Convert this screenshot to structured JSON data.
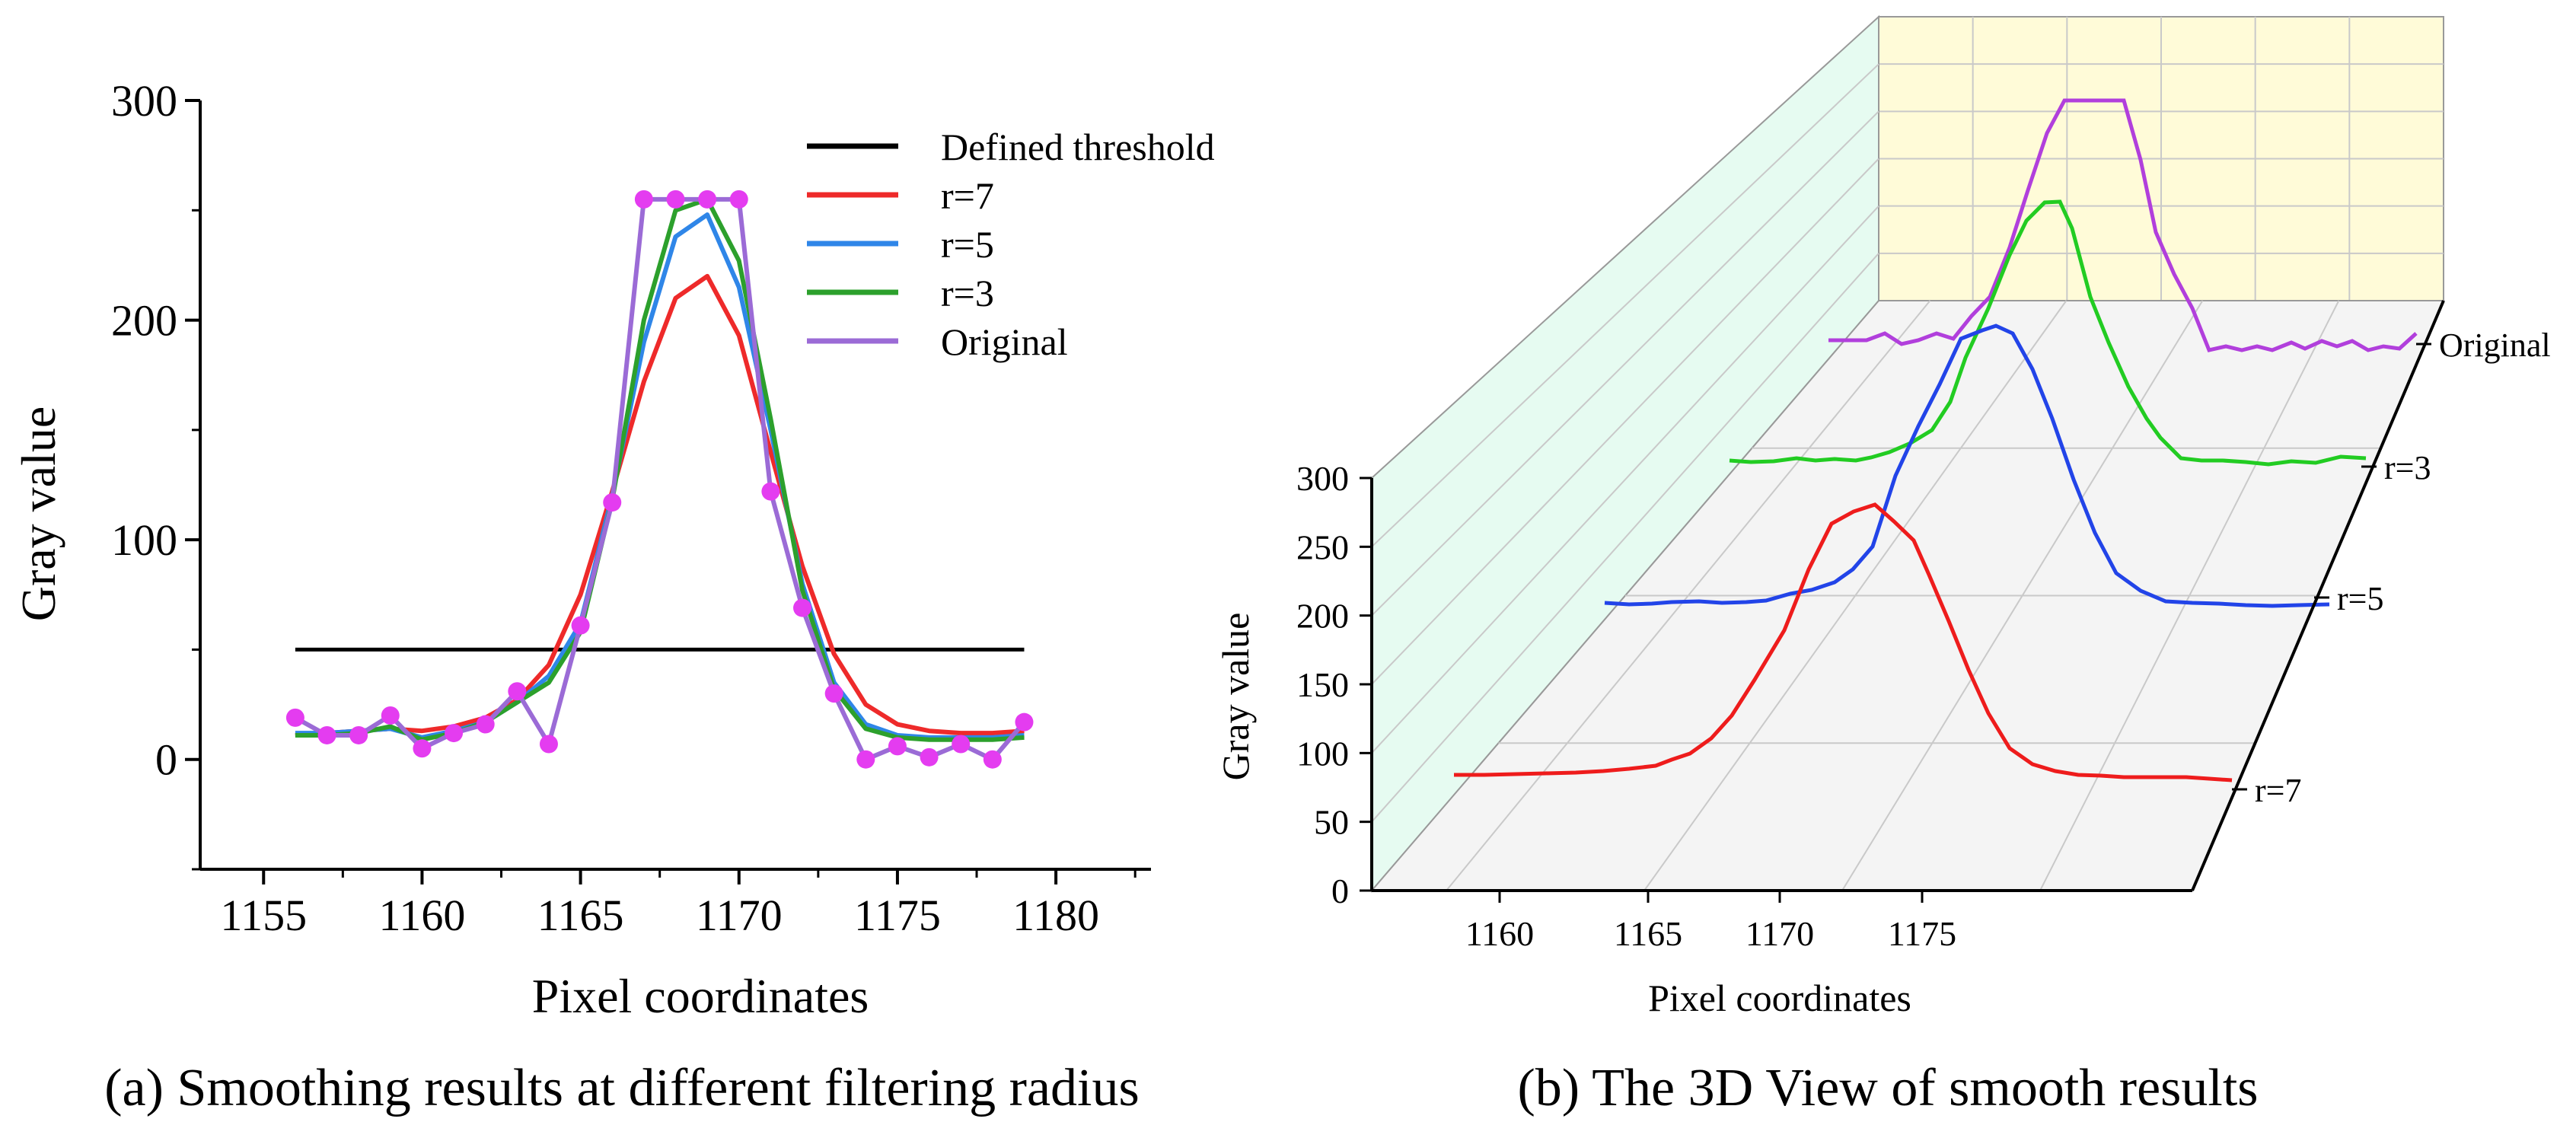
{
  "chart_data": [
    {
      "type": "line",
      "xlabel": "Pixel coordinates",
      "ylabel": "Gray value",
      "caption": "(a) Smoothing results at different filtering radius",
      "xlim": [
        1153,
        1183
      ],
      "ylim": [
        -50,
        300
      ],
      "xticks": [
        1155,
        1160,
        1165,
        1170,
        1175,
        1180
      ],
      "yticks": [
        0,
        100,
        200,
        300
      ],
      "x": [
        1156,
        1157,
        1158,
        1159,
        1160,
        1161,
        1162,
        1163,
        1164,
        1165,
        1166,
        1167,
        1168,
        1169,
        1170,
        1171,
        1172,
        1173,
        1174,
        1175,
        1176,
        1177,
        1178,
        1179
      ],
      "legend_position": "top-right",
      "series": [
        {
          "name": "Defined threshold",
          "color": "#000000",
          "values": [
            50,
            50,
            50,
            50,
            50,
            50,
            50,
            50,
            50,
            50,
            50,
            50,
            50,
            50,
            50,
            50,
            50,
            50,
            50,
            50,
            50,
            50,
            50,
            50
          ]
        },
        {
          "name": "r=7",
          "color": "#ee2a2a",
          "values": [
            11,
            12,
            13,
            14,
            13,
            15,
            19,
            27,
            43,
            75,
            122,
            172,
            210,
            220,
            193,
            140,
            88,
            48,
            25,
            16,
            13,
            12,
            12,
            13
          ]
        },
        {
          "name": "r=5",
          "color": "#2f86e8",
          "values": [
            12,
            12,
            13,
            14,
            10,
            13,
            17,
            26,
            38,
            62,
            120,
            190,
            238,
            248,
            215,
            150,
            80,
            35,
            16,
            11,
            10,
            10,
            10,
            11
          ]
        },
        {
          "name": "r=3",
          "color": "#2ca02c",
          "values": [
            11,
            11,
            12,
            15,
            9,
            12,
            17,
            26,
            35,
            58,
            118,
            200,
            250,
            255,
            227,
            155,
            77,
            32,
            14,
            10,
            9,
            9,
            9,
            10
          ]
        },
        {
          "name": "Original",
          "color": "#9b6bd6",
          "marker_color": "#e43cf0",
          "values": [
            19,
            11,
            11,
            20,
            5,
            12,
            16,
            31,
            7,
            61,
            117,
            255,
            255,
            255,
            255,
            122,
            69,
            30,
            0,
            6,
            1,
            7,
            0,
            17
          ]
        }
      ]
    },
    {
      "type": "line-3d",
      "xlabel": "Pixel coordinates",
      "ylabel": "Gray value",
      "caption": "(b) The 3D View of smooth results",
      "xticks": [
        1160,
        1165,
        1170,
        1175
      ],
      "zticks": [
        0,
        50,
        100,
        150,
        200,
        250,
        300
      ],
      "zlim": [
        0,
        300
      ],
      "depth_labels": [
        "r=7",
        "r=5",
        "r=3",
        "Original"
      ]
    }
  ]
}
